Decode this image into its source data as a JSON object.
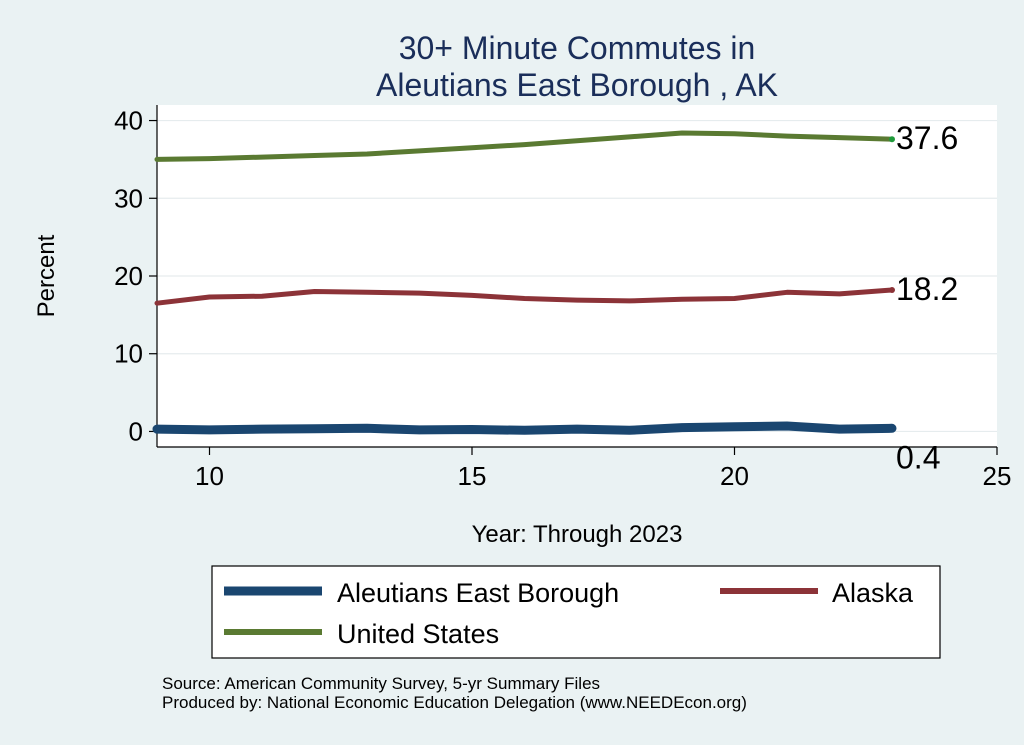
{
  "chart_data": {
    "type": "line",
    "title_lines": [
      "30+ Minute Commutes in",
      "Aleutians East Borough , AK"
    ],
    "xlabel": "Year: Through 2023",
    "ylabel": "Percent",
    "xlim": [
      9,
      25
    ],
    "ylim": [
      -2,
      42
    ],
    "xticks": [
      10,
      15,
      20,
      25
    ],
    "yticks": [
      0,
      10,
      20,
      30,
      40
    ],
    "grid": true,
    "legend_position": "bottom",
    "x": [
      9,
      10,
      11,
      12,
      13,
      14,
      15,
      16,
      17,
      18,
      19,
      20,
      21,
      22,
      23
    ],
    "series": [
      {
        "name": "Aleutians East Borough",
        "color": "#1a4670",
        "values": [
          0.3,
          0.2,
          0.3,
          0.35,
          0.4,
          0.2,
          0.25,
          0.15,
          0.3,
          0.15,
          0.5,
          0.6,
          0.7,
          0.3,
          0.4
        ],
        "end_label": "0.4"
      },
      {
        "name": "Alaska",
        "color": "#8c3338",
        "values": [
          16.5,
          17.3,
          17.4,
          18.0,
          17.9,
          17.8,
          17.5,
          17.1,
          16.9,
          16.8,
          17.0,
          17.1,
          17.9,
          17.7,
          18.2
        ],
        "end_label": "18.2"
      },
      {
        "name": "United States",
        "color": "#5a7a32",
        "values": [
          35.0,
          35.1,
          35.3,
          35.5,
          35.7,
          36.1,
          36.5,
          36.9,
          37.4,
          37.9,
          38.4,
          38.3,
          38.0,
          37.8,
          37.6
        ],
        "end_label": "37.6"
      }
    ],
    "source_lines": [
      "Source: American Community Survey, 5-yr Summary Files",
      "Produced by: National Economic Education Delegation (www.NEEDEcon.org)"
    ]
  }
}
